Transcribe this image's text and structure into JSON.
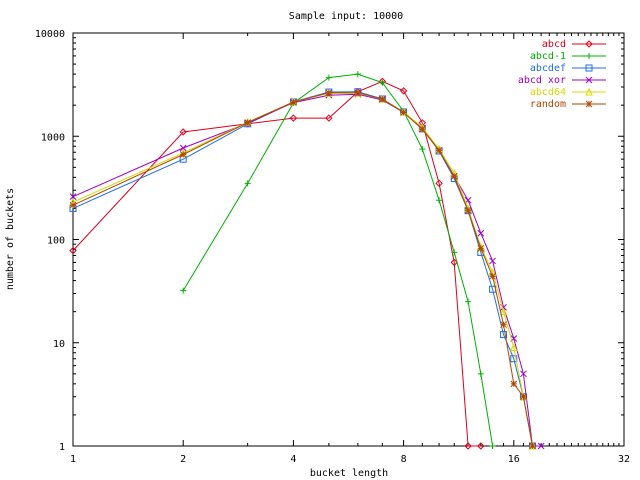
{
  "chart_data": {
    "type": "line",
    "title": "Sample input: 10000",
    "xlabel": "bucket length",
    "ylabel": "number of buckets",
    "x_scale": "log2",
    "y_scale": "log10",
    "xlim": [
      1,
      32
    ],
    "ylim": [
      1,
      10000
    ],
    "xticks": [
      1,
      2,
      4,
      8,
      16,
      32
    ],
    "xtick_labels": [
      "1",
      "2",
      "4",
      "8",
      "16",
      "32"
    ],
    "yticks": [
      1,
      10,
      100,
      1000,
      10000
    ],
    "ytick_labels": [
      "1",
      "10",
      "100",
      "1000",
      "10000"
    ],
    "grid": false,
    "legend_position": "top-right",
    "series": [
      {
        "name": "abcd",
        "color": "#e0001a",
        "marker": "diamond",
        "points": [
          [
            1,
            78
          ],
          [
            2,
            1100
          ],
          [
            3,
            1320
          ],
          [
            4,
            1500
          ],
          [
            5,
            1500
          ],
          [
            6,
            2700
          ],
          [
            7,
            3400
          ],
          [
            8,
            2750
          ],
          [
            9,
            1350
          ],
          [
            10,
            350
          ],
          [
            11,
            60
          ],
          [
            12,
            1
          ],
          [
            13,
            1
          ]
        ]
      },
      {
        "name": "abcd-1",
        "color": "#00b000",
        "marker": "plus",
        "points": [
          [
            2,
            32
          ],
          [
            3,
            350
          ],
          [
            4,
            2100
          ],
          [
            5,
            3700
          ],
          [
            6,
            4000
          ],
          [
            7,
            3300
          ],
          [
            8,
            1750
          ],
          [
            9,
            750
          ],
          [
            10,
            240
          ],
          [
            11,
            75
          ],
          [
            12,
            25
          ],
          [
            13,
            5
          ],
          [
            14,
            1
          ]
        ]
      },
      {
        "name": "abcdef",
        "color": "#1e6ee6",
        "marker": "square",
        "points": [
          [
            1,
            200
          ],
          [
            2,
            600
          ],
          [
            3,
            1320
          ],
          [
            4,
            2150
          ],
          [
            5,
            2680
          ],
          [
            6,
            2700
          ],
          [
            7,
            2300
          ],
          [
            8,
            1720
          ],
          [
            9,
            1180
          ],
          [
            10,
            720
          ],
          [
            11,
            390
          ],
          [
            12,
            190
          ],
          [
            13,
            75
          ],
          [
            14,
            33
          ],
          [
            15,
            12
          ],
          [
            16,
            7
          ],
          [
            17,
            3
          ],
          [
            18,
            1
          ]
        ]
      },
      {
        "name": "abcd xor",
        "color": "#a000c8",
        "marker": "x",
        "points": [
          [
            1,
            260
          ],
          [
            2,
            770
          ],
          [
            3,
            1340
          ],
          [
            4,
            2120
          ],
          [
            5,
            2500
          ],
          [
            6,
            2550
          ],
          [
            7,
            2250
          ],
          [
            8,
            1700
          ],
          [
            9,
            1200
          ],
          [
            10,
            730
          ],
          [
            11,
            410
          ],
          [
            12,
            240
          ],
          [
            13,
            115
          ],
          [
            14,
            62
          ],
          [
            15,
            22
          ],
          [
            16,
            11
          ],
          [
            17,
            5
          ],
          [
            18,
            1
          ],
          [
            19,
            1
          ]
        ]
      },
      {
        "name": "abcd64",
        "color": "#d8d800",
        "marker": "triangle",
        "points": [
          [
            1,
            230
          ],
          [
            2,
            690
          ],
          [
            3,
            1370
          ],
          [
            4,
            2150
          ],
          [
            5,
            2600
          ],
          [
            6,
            2610
          ],
          [
            7,
            2290
          ],
          [
            8,
            1720
          ],
          [
            9,
            1220
          ],
          [
            10,
            750
          ],
          [
            11,
            440
          ],
          [
            12,
            200
          ],
          [
            13,
            85
          ],
          [
            14,
            48
          ],
          [
            15,
            20
          ],
          [
            16,
            9
          ],
          [
            17,
            3
          ],
          [
            18,
            1
          ]
        ]
      },
      {
        "name": "random",
        "color": "#b04800",
        "marker": "star",
        "points": [
          [
            1,
            215
          ],
          [
            2,
            665
          ],
          [
            3,
            1360
          ],
          [
            4,
            2140
          ],
          [
            5,
            2640
          ],
          [
            6,
            2640
          ],
          [
            7,
            2290
          ],
          [
            8,
            1700
          ],
          [
            9,
            1170
          ],
          [
            10,
            730
          ],
          [
            11,
            410
          ],
          [
            12,
            190
          ],
          [
            13,
            82
          ],
          [
            14,
            44
          ],
          [
            15,
            15
          ],
          [
            16,
            4
          ],
          [
            17,
            3
          ],
          [
            18,
            1
          ]
        ]
      }
    ]
  }
}
